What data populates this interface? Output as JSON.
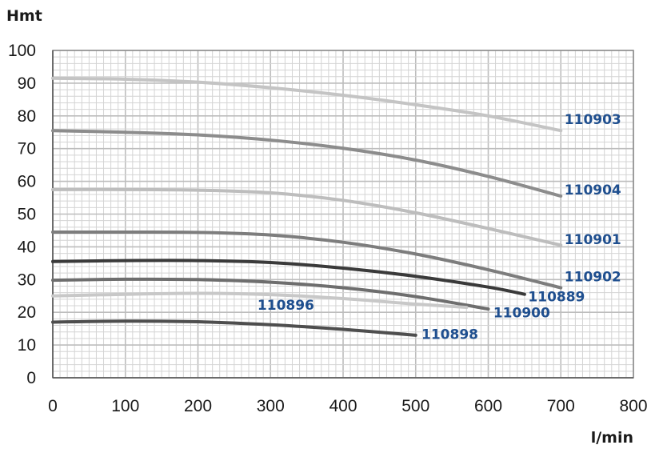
{
  "chart_data": {
    "type": "line",
    "title": "",
    "xlabel": "l/min",
    "ylabel": "Hmt",
    "xlim": [
      0,
      800
    ],
    "ylim": [
      0,
      100
    ],
    "x_ticks": [
      "0",
      "100",
      "200",
      "300",
      "400",
      "500",
      "600",
      "700",
      "800"
    ],
    "y_ticks": [
      "0",
      "10",
      "20",
      "30",
      "40",
      "50",
      "60",
      "70",
      "80",
      "90",
      "100"
    ],
    "grid": true,
    "series": [
      {
        "name": "110903",
        "color": "#c4c4c4",
        "x": [
          0,
          100,
          200,
          300,
          400,
          500,
          600,
          700
        ],
        "y": [
          91.5,
          91.2,
          90.3,
          88.6,
          86.3,
          83.4,
          80,
          75.5
        ]
      },
      {
        "name": "110904",
        "color": "#8c8c8c",
        "x": [
          0,
          100,
          200,
          300,
          400,
          500,
          600,
          700
        ],
        "y": [
          75.5,
          75,
          74.2,
          72.6,
          70.1,
          66.5,
          61.5,
          55.5
        ]
      },
      {
        "name": "110901",
        "color": "#bdbdbd",
        "x": [
          0,
          100,
          200,
          300,
          400,
          500,
          600,
          700
        ],
        "y": [
          57.5,
          57.5,
          57.3,
          56.5,
          54.2,
          50.4,
          45.6,
          40.5
        ]
      },
      {
        "name": "110902",
        "color": "#7d7d7d",
        "x": [
          0,
          100,
          200,
          300,
          400,
          500,
          600,
          700
        ],
        "y": [
          44.5,
          44.5,
          44.4,
          43.6,
          41.4,
          37.8,
          33,
          27.5
        ]
      },
      {
        "name": "110889",
        "color": "#3a3a3a",
        "x": [
          0,
          100,
          200,
          300,
          400,
          500,
          600,
          650
        ],
        "y": [
          35.5,
          35.8,
          35.8,
          35.2,
          33.5,
          31,
          27.7,
          25.5
        ]
      },
      {
        "name": "110900",
        "color": "#6e6e6e",
        "x": [
          0,
          100,
          200,
          300,
          400,
          500,
          600
        ],
        "y": [
          29.8,
          30.1,
          30,
          29.2,
          27.5,
          24.8,
          21
        ]
      },
      {
        "name": "110896",
        "color": "#c8c8c8",
        "x": [
          0,
          100,
          200,
          300,
          400,
          500,
          570
        ],
        "y": [
          25,
          25.5,
          25.8,
          25.4,
          24.2,
          22.5,
          21.5
        ]
      },
      {
        "name": "110898",
        "color": "#4e4e4e",
        "x": [
          0,
          100,
          200,
          300,
          400,
          500
        ],
        "y": [
          17,
          17.3,
          17.1,
          16.2,
          14.8,
          13
        ]
      }
    ],
    "labels": [
      {
        "text": "110903",
        "x": 705,
        "y": 77.5
      },
      {
        "text": "110904",
        "x": 705,
        "y": 56
      },
      {
        "text": "110901",
        "x": 705,
        "y": 40.8
      },
      {
        "text": "110902",
        "x": 705,
        "y": 29.5
      },
      {
        "text": "110889",
        "x": 655,
        "y": 23.3
      },
      {
        "text": "110900",
        "x": 607,
        "y": 18.5
      },
      {
        "text": "110896",
        "x": 282,
        "y": 20.8
      },
      {
        "text": "110898",
        "x": 508,
        "y": 11.8
      }
    ]
  }
}
